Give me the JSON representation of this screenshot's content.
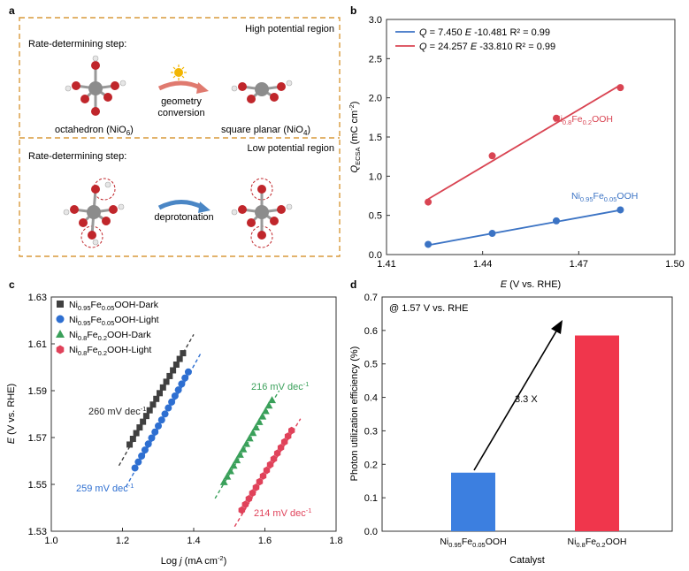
{
  "panel_a": {
    "letter": "a",
    "top": {
      "region": "High potential region",
      "step": "Rate-determining step:",
      "arrow_label_1": "geometry",
      "arrow_label_2": "conversion",
      "left_name": "octahedron (NiO",
      "left_sub": "6",
      "left_end": ")",
      "right_name": "square planar (NiO",
      "right_sub": "4",
      "right_end": ")"
    },
    "bottom": {
      "region": "Low potential region",
      "step": "Rate-determining step:",
      "arrow_label": "deprotonation"
    },
    "colors": {
      "border": "#d99a3c",
      "ni": "#8c8c8c",
      "o": "#c0262b",
      "h": "#e8e8e8",
      "arrow_red": "#e07a6f",
      "arrow_blue": "#4a86c5",
      "sun": "#f2b500"
    }
  },
  "panel_b": {
    "letter": "b",
    "legend": [
      {
        "q": "Q",
        "eq": " = 7.450 ",
        "e": "E",
        "rest": " -10.481 R² = 0.99",
        "color": "#3b73c4"
      },
      {
        "q": "Q",
        "eq": " = 24.257 ",
        "e": "E",
        "rest": " -33.810 R² = 0.99",
        "color": "#d94452"
      }
    ],
    "label_red": {
      "a": "Ni",
      "s1": "0.8",
      "b": "Fe",
      "s2": "0.2",
      "c": "OOH"
    },
    "label_blue": {
      "a": "Ni",
      "s1": "0.95",
      "b": "Fe",
      "s2": "0.05",
      "c": "OOH"
    },
    "ylabel": {
      "q": "Q",
      "sub": "ECSA",
      "rest": " (mC cm",
      "sup": "-2",
      "end": ")"
    },
    "xlabel": {
      "e": "E",
      "rest": " (V vs. RHE)"
    }
  },
  "panel_c": {
    "letter": "c",
    "legend": [
      {
        "a": "Ni",
        "s1": "0.95",
        "b": "Fe",
        "s2": "0.05",
        "c": "OOH-Dark",
        "marker": "square",
        "color": "#404040"
      },
      {
        "a": "Ni",
        "s1": "0.95",
        "b": "Fe",
        "s2": "0.05",
        "c": "OOH-Light",
        "marker": "circle",
        "color": "#2e6fd1"
      },
      {
        "a": "Ni",
        "s1": "0.8",
        "b": "Fe",
        "s2": "0.2",
        "c": "OOH-Dark",
        "marker": "triangle",
        "color": "#3aa05a"
      },
      {
        "a": "Ni",
        "s1": "0.8",
        "b": "Fe",
        "s2": "0.2",
        "c": "OOH-Light",
        "marker": "hexagon",
        "color": "#e0425a"
      }
    ],
    "tafel": [
      {
        "text": "260 mV dec",
        "sup": "-1",
        "color": "#222222"
      },
      {
        "text": "259 mV dec",
        "sup": "-1",
        "color": "#2e6fd1"
      },
      {
        "text": "216 mV dec",
        "sup": "-1",
        "color": "#3aa05a"
      },
      {
        "text": "214 mV dec",
        "sup": "-1",
        "color": "#e0425a"
      }
    ],
    "ylabel": {
      "e": "E",
      "rest": " (V vs. RHE)"
    },
    "xlabel": {
      "a": "Log ",
      "j": "j",
      "rest": " (mA cm",
      "sup": "-2",
      "end": ")"
    }
  },
  "panel_d": {
    "letter": "d",
    "condition": "@ 1.57 V vs. RHE",
    "ratio": "3.3 X",
    "ylabel": "Photon utilization efficiency (%)",
    "xlabel": "Catalyst",
    "cat1": {
      "a": "Ni",
      "s1": "0.95",
      "b": "Fe",
      "s2": "0.05",
      "c": "OOH"
    },
    "cat2": {
      "a": "Ni",
      "s1": "0.8",
      "b": "Fe",
      "s2": "0.2",
      "c": "OOH"
    }
  },
  "chart_data": [
    {
      "type": "scatter",
      "panel": "b",
      "xlim": [
        1.41,
        1.5
      ],
      "ylim": [
        0,
        3.0
      ],
      "xticks": [
        1.41,
        1.44,
        1.47,
        1.5
      ],
      "yticks": [
        0.0,
        0.5,
        1.0,
        1.5,
        2.0,
        2.5,
        3.0
      ],
      "series": [
        {
          "color": "#3b73c4",
          "x": [
            1.423,
            1.443,
            1.463,
            1.483
          ],
          "y": [
            0.13,
            0.27,
            0.43,
            0.57
          ],
          "fit": [
            7.45,
            -10.481
          ]
        },
        {
          "color": "#d94452",
          "x": [
            1.423,
            1.443,
            1.463,
            1.483
          ],
          "y": [
            0.67,
            1.26,
            1.74,
            2.13
          ],
          "fit": [
            24.257,
            -33.81
          ]
        }
      ]
    },
    {
      "type": "scatter",
      "panel": "c",
      "xlim": [
        1.0,
        1.8
      ],
      "ylim": [
        1.53,
        1.63
      ],
      "xticks": [
        1.0,
        1.2,
        1.4,
        1.6,
        1.8
      ],
      "yticks": [
        1.53,
        1.55,
        1.57,
        1.59,
        1.61,
        1.63
      ],
      "series": [
        {
          "marker": "square",
          "color": "#404040",
          "x0": 1.22,
          "x1": 1.37,
          "y0": 1.567,
          "y1": 1.606,
          "n": 17,
          "line": [
            [
              1.19,
              1.558
            ],
            [
              1.4,
              1.614
            ]
          ]
        },
        {
          "marker": "circle",
          "color": "#2e6fd1",
          "x0": 1.235,
          "x1": 1.385,
          "y0": 1.557,
          "y1": 1.598,
          "n": 17,
          "line": [
            [
              1.21,
              1.549
            ],
            [
              1.42,
              1.606
            ]
          ]
        },
        {
          "marker": "triangle",
          "color": "#3aa05a",
          "x0": 1.485,
          "x1": 1.62,
          "y0": 1.551,
          "y1": 1.586,
          "n": 16,
          "line": [
            [
              1.46,
              1.544
            ],
            [
              1.64,
              1.59
            ]
          ]
        },
        {
          "marker": "hexagon",
          "color": "#e0425a",
          "x0": 1.535,
          "x1": 1.675,
          "y0": 1.539,
          "y1": 1.573,
          "n": 15,
          "line": [
            [
              1.515,
              1.532
            ],
            [
              1.7,
              1.578
            ]
          ]
        }
      ]
    },
    {
      "type": "bar",
      "panel": "d",
      "ylim": [
        0,
        0.7
      ],
      "yticks": [
        0.0,
        0.1,
        0.2,
        0.3,
        0.4,
        0.5,
        0.6,
        0.7
      ],
      "values": [
        0.175,
        0.585
      ],
      "colors": [
        "#3c7fe0",
        "#f0364c"
      ]
    }
  ]
}
